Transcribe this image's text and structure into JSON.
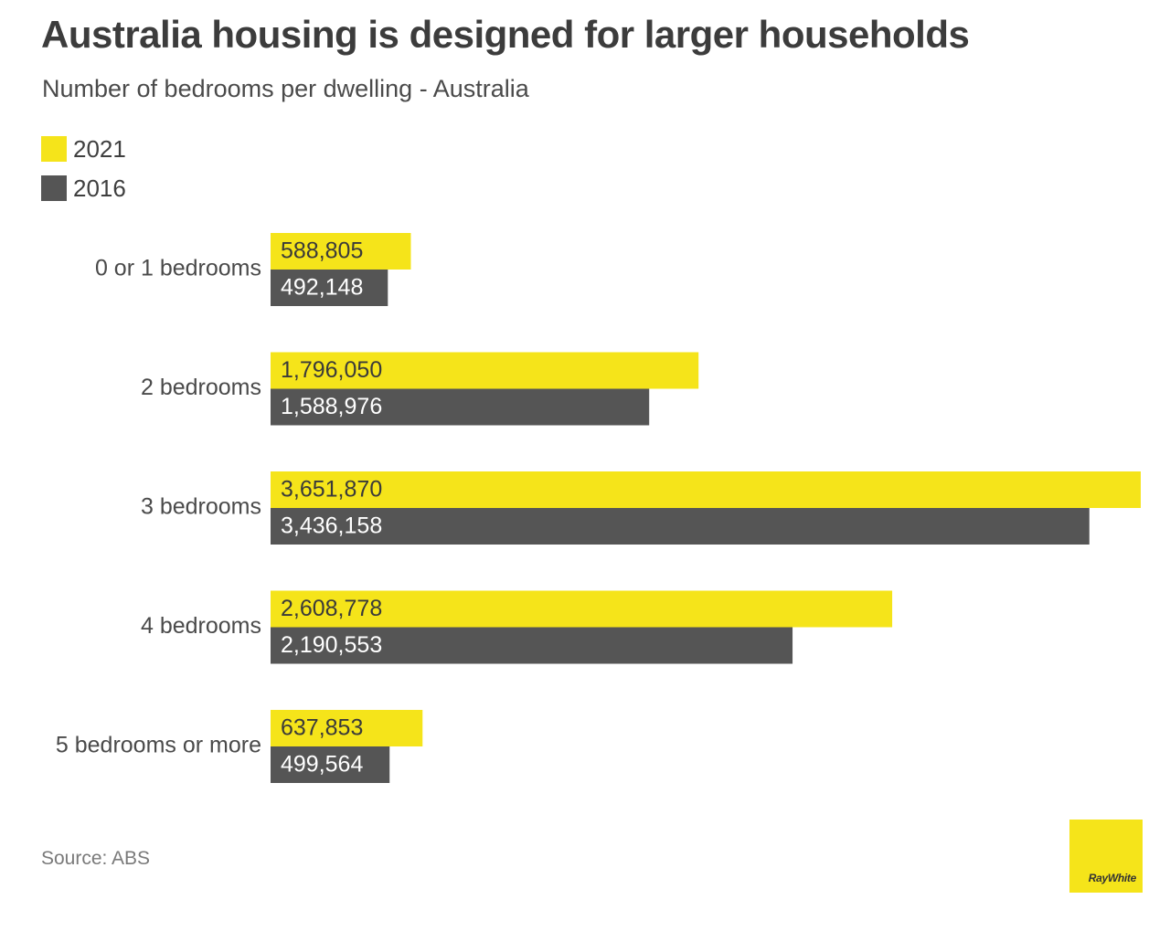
{
  "chart_data": {
    "type": "bar",
    "orientation": "horizontal",
    "title": "Australia housing is designed for larger households",
    "subtitle": "Number of bedrooms per dwelling - Australia",
    "categories": [
      "0 or 1 bedrooms",
      "2 bedrooms",
      "3 bedrooms",
      "4 bedrooms",
      "5 bedrooms or more"
    ],
    "series": [
      {
        "name": "2021",
        "color": "#f5e41a",
        "label_color": "#3a3a3a",
        "values": [
          588805,
          1796050,
          3651870,
          2608778,
          637853
        ],
        "labels": [
          "588,805",
          "1,796,050",
          "3,651,870",
          "2,608,778",
          "637,853"
        ]
      },
      {
        "name": "2016",
        "color": "#555555",
        "label_color": "#ffffff",
        "values": [
          492148,
          1588976,
          3436158,
          2190553,
          499564
        ],
        "labels": [
          "492,148",
          "1,588,976",
          "3,436,158",
          "2,190,553",
          "499,564"
        ]
      }
    ],
    "xlim": [
      0,
      3651870
    ],
    "grid": false,
    "legend_position": "top-left",
    "data_labels": "inside-left"
  },
  "source": "Source: ABS",
  "logo_text": "RayWhite"
}
